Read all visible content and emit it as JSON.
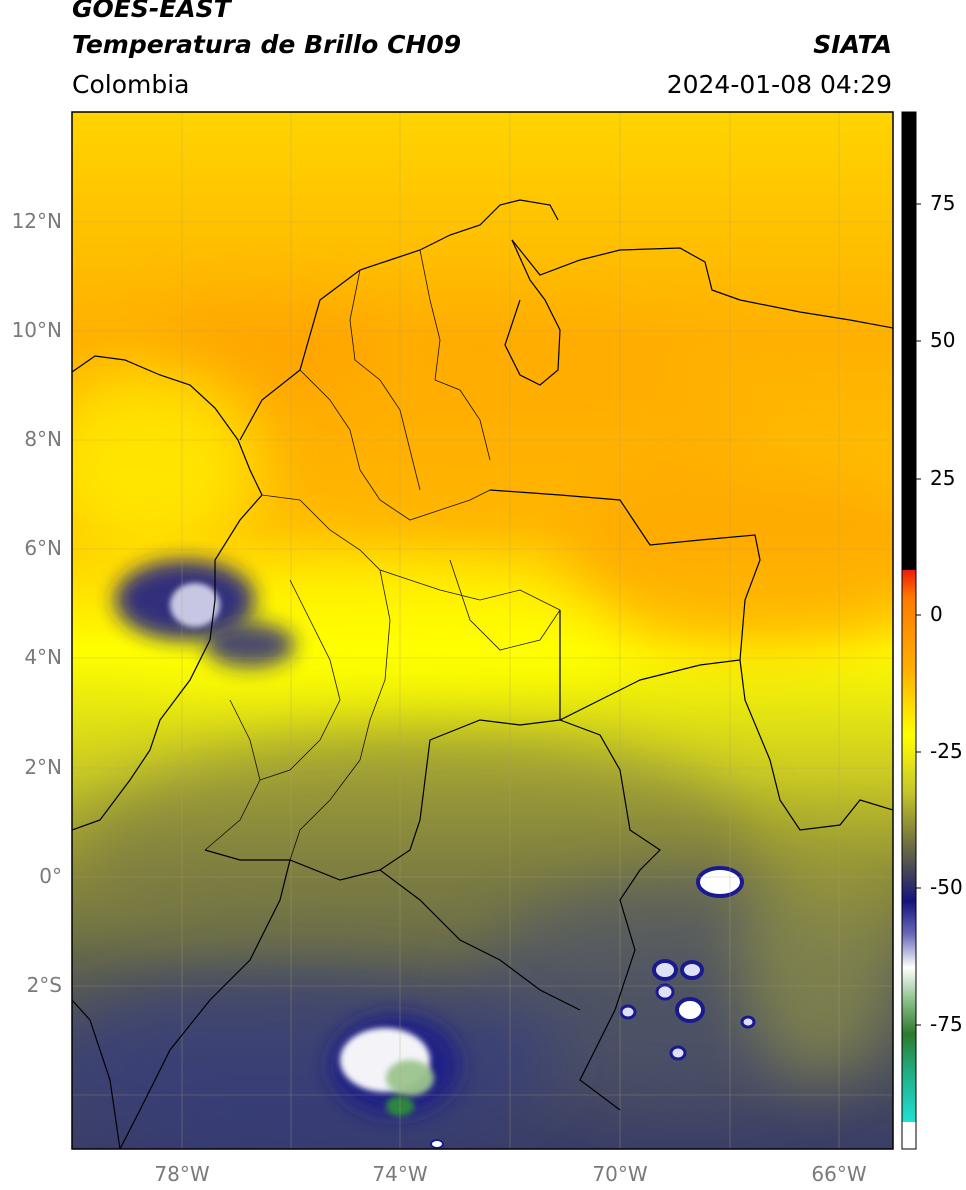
{
  "header": {
    "satellite": "GOES-EAST",
    "product": "Temperatura de Brillo CH09",
    "brand": "SIATA",
    "region": "Colombia",
    "timestamp": "2024-01-08 04:29"
  },
  "map": {
    "lat_ticks": [
      "12°N",
      "10°N",
      "8°N",
      "6°N",
      "4°N",
      "2°N",
      "0°",
      "2°S"
    ],
    "lon_ticks": [
      "78°W",
      "74°W",
      "70°W",
      "66°W"
    ],
    "colorbar_ticks": [
      "75",
      "50",
      "25",
      "0",
      "-25",
      "-50",
      "-75"
    ],
    "palette": {
      "black": "#000000",
      "red": "#ee1c0a",
      "orange": "#f5a300",
      "yellow": "#ffff00",
      "olive": "#b8b832",
      "slate": "#4a5060",
      "navy": "#1a1a80",
      "white": "#ffffff",
      "green": "#2e8b3e",
      "cyan": "#20d0c8"
    }
  }
}
